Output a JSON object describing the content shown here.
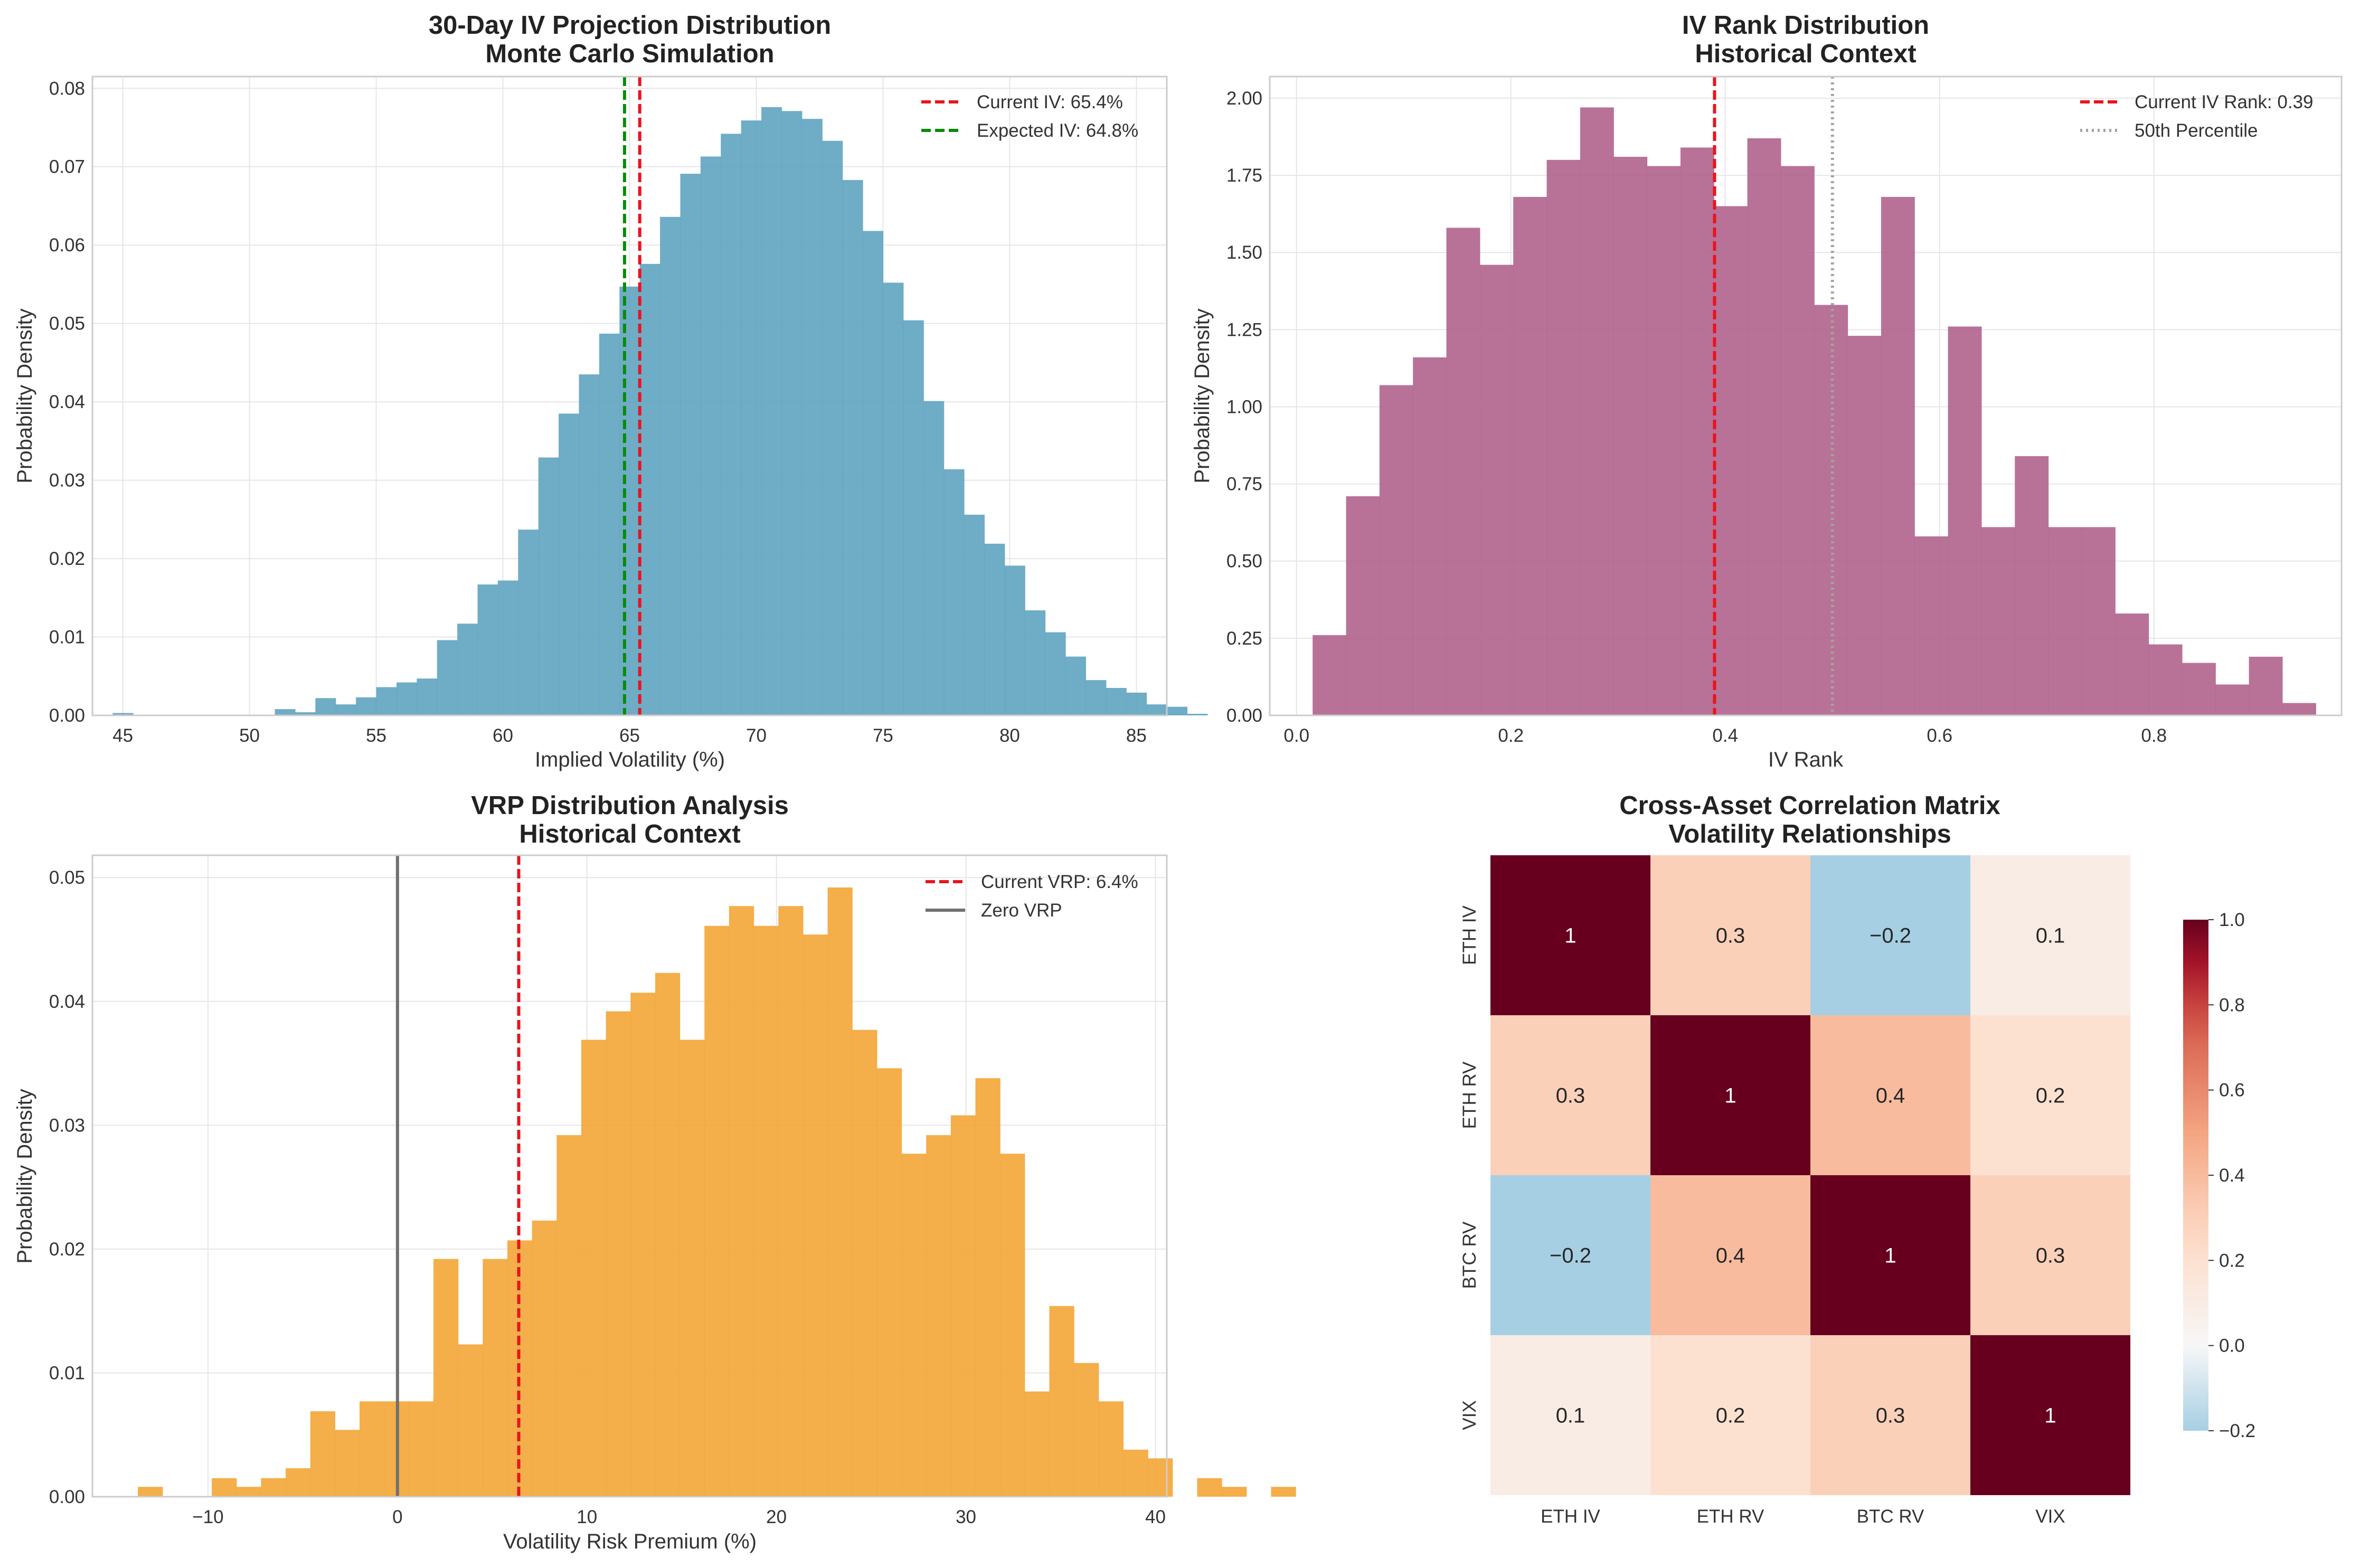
{
  "chart_data": [
    {
      "type": "histogram",
      "title": "30-Day IV Projection Distribution",
      "subtitle": "Monte Carlo Simulation",
      "xlabel": "Implied Volatility (%)",
      "ylabel": "Probability Density",
      "xlim": [
        43.8,
        86.2
      ],
      "ylim": [
        0,
        0.0815
      ],
      "xticks": [
        45,
        50,
        55,
        60,
        65,
        70,
        75,
        80,
        85
      ],
      "yticks": [
        0.0,
        0.01,
        0.02,
        0.03,
        0.04,
        0.05,
        0.06,
        0.07,
        0.08
      ],
      "ytick_decimals": 2,
      "grid": true,
      "legend_position": "top-right",
      "bar_color": "#5FA3C0",
      "bins": {
        "start": 44.6,
        "width": 0.8
      },
      "values": [
        0.0003,
        0,
        0,
        0,
        0,
        0,
        0,
        0,
        0.0008,
        0.0004,
        0.0022,
        0.0014,
        0.0023,
        0.0036,
        0.0042,
        0.0047,
        0.0096,
        0.0117,
        0.0167,
        0.0172,
        0.0237,
        0.0329,
        0.0385,
        0.0435,
        0.0487,
        0.0547,
        0.0576,
        0.0636,
        0.0691,
        0.0713,
        0.0742,
        0.0759,
        0.0776,
        0.0771,
        0.0761,
        0.0733,
        0.0683,
        0.0618,
        0.0552,
        0.0504,
        0.0401,
        0.0314,
        0.0256,
        0.0219,
        0.0191,
        0.0134,
        0.0106,
        0.0075,
        0.0045,
        0.0035,
        0.0029,
        0.0014,
        0.0011,
        0.0002,
        0,
        0,
        0,
        0,
        0,
        0,
        0,
        0.0002
      ],
      "vlines": [
        {
          "x": 65.4,
          "color": "#E8141E",
          "style": "dashed",
          "label": "Current IV: 65.4%"
        },
        {
          "x": 64.8,
          "color": "#0B8A0B",
          "style": "dashed",
          "label": "Expected IV: 64.8%"
        }
      ]
    },
    {
      "type": "histogram",
      "title": "IV Rank Distribution",
      "subtitle": "Historical Context",
      "xlabel": "IV Rank",
      "ylabel": "Probability Density",
      "xlim": [
        -0.025,
        0.975
      ],
      "ylim": [
        0,
        2.07
      ],
      "xticks": [
        0.0,
        0.2,
        0.4,
        0.6,
        0.8
      ],
      "yticks": [
        0.0,
        0.25,
        0.5,
        0.75,
        1.0,
        1.25,
        1.5,
        1.75,
        2.0
      ],
      "xtick_decimals": 1,
      "ytick_decimals": 2,
      "grid": true,
      "legend_position": "top-right",
      "bar_color": "#B0638D",
      "bins": {
        "start": 0.015,
        "width": 0.0312
      },
      "values": [
        0.26,
        0.71,
        1.07,
        1.16,
        1.58,
        1.46,
        1.68,
        1.8,
        1.97,
        1.81,
        1.78,
        1.84,
        1.65,
        1.87,
        1.78,
        1.33,
        1.23,
        1.68,
        0.58,
        1.26,
        0.61,
        0.84,
        0.61,
        0.61,
        0.33,
        0.23,
        0.17,
        0.1,
        0.19,
        0.04
      ],
      "vlines": [
        {
          "x": 0.39,
          "color": "#E8141E",
          "style": "dashed",
          "label": "Current IV Rank: 0.39"
        },
        {
          "x": 0.5,
          "color": "#A3A3A3",
          "style": "dotted",
          "label": "50th Percentile"
        }
      ]
    },
    {
      "type": "histogram",
      "title": "VRP Distribution Analysis",
      "subtitle": "Historical Context",
      "xlabel": "Volatility Risk Premium (%)",
      "ylabel": "Probability Density",
      "xlim": [
        -16.1,
        40.6
      ],
      "ylim": [
        0,
        0.0518
      ],
      "xticks": [
        -10,
        0,
        10,
        20,
        30,
        40
      ],
      "yticks": [
        0.0,
        0.01,
        0.02,
        0.03,
        0.04,
        0.05
      ],
      "ytick_decimals": 2,
      "grid": true,
      "legend_position": "top-right",
      "bar_color": "#F3A536",
      "bins": {
        "start": -13.7,
        "width": 1.3
      },
      "values": [
        0.0008,
        0,
        0,
        0.0015,
        0.0008,
        0.0015,
        0.0023,
        0.0069,
        0.0054,
        0.0077,
        0.0077,
        0.0077,
        0.0192,
        0.0123,
        0.0192,
        0.0207,
        0.0223,
        0.0292,
        0.0369,
        0.0392,
        0.0407,
        0.0423,
        0.0369,
        0.0461,
        0.0477,
        0.0461,
        0.0477,
        0.0454,
        0.0492,
        0.0377,
        0.0346,
        0.0277,
        0.0292,
        0.0308,
        0.0338,
        0.0277,
        0.0085,
        0.0154,
        0.0108,
        0.0077,
        0.0038,
        0.0031,
        0,
        0.0015,
        0.0008,
        0,
        0.0008
      ],
      "vlines": [
        {
          "x": 6.4,
          "color": "#E8141E",
          "style": "dashed",
          "label": "Current VRP: 6.4%"
        },
        {
          "x": 0,
          "color": "#707070",
          "style": "solid",
          "label": "Zero VRP"
        }
      ]
    },
    {
      "type": "heatmap",
      "title": "Cross-Asset Correlation Matrix",
      "subtitle": "Volatility Relationships",
      "rows": [
        "ETH IV",
        "ETH RV",
        "BTC RV",
        "VIX"
      ],
      "cols": [
        "ETH IV",
        "ETH RV",
        "BTC RV",
        "VIX"
      ],
      "values": [
        [
          1,
          0.3,
          -0.2,
          0.1
        ],
        [
          0.3,
          1,
          0.4,
          0.2
        ],
        [
          -0.2,
          0.4,
          1,
          0.3
        ],
        [
          0.1,
          0.2,
          0.3,
          1
        ]
      ],
      "colorscale": "RdBu_r",
      "vmin": -0.2,
      "vmax": 1.0,
      "colorbar_ticks": [
        -0.2,
        0.0,
        0.2,
        0.4,
        0.6,
        0.8,
        1.0
      ],
      "colorbar_decimals": 1
    }
  ]
}
